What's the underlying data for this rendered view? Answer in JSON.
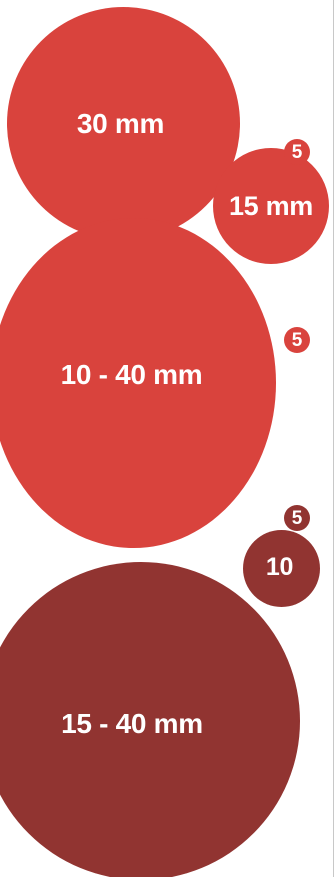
{
  "circles": [
    {
      "label": "30 mm",
      "tone": "light"
    },
    {
      "label": "15 mm",
      "tone": "light"
    },
    {
      "label": "10 - 40 mm",
      "tone": "light"
    },
    {
      "label": "10",
      "tone": "dark"
    },
    {
      "label": "15 - 40 mm",
      "tone": "dark"
    }
  ],
  "badges": [
    {
      "label": "5",
      "tone": "light"
    },
    {
      "label": "5",
      "tone": "light"
    },
    {
      "label": "5",
      "tone": "dark"
    }
  ],
  "colors": {
    "light_red": "#d9433d",
    "dark_red": "#913431",
    "text": "#ffffff",
    "background": "#ffffff",
    "rule": "#c8c8c8"
  }
}
